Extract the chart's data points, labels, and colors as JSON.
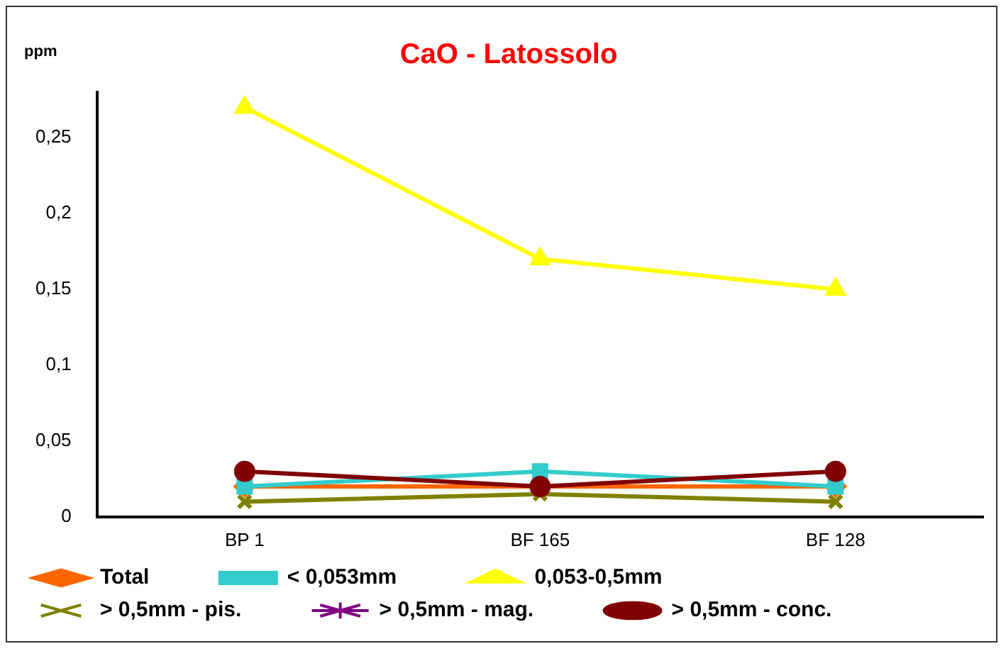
{
  "chart_data": {
    "type": "line",
    "title": "CaO - Latossolo",
    "ylabel": "ppm",
    "categories": [
      "BP 1",
      "BF 165",
      "BF 128"
    ],
    "series": [
      {
        "name": "Total",
        "color": "#ff6600",
        "marker": "diamond",
        "values": [
          0.02,
          0.02,
          0.02
        ]
      },
      {
        "name": "< 0,053mm",
        "color": "#33cccc",
        "marker": "square",
        "values": [
          0.02,
          0.03,
          0.02
        ]
      },
      {
        "name": "0,053-0,5mm",
        "color": "#ffff00",
        "marker": "triangle",
        "values": [
          0.27,
          0.17,
          0.15
        ]
      },
      {
        "name": "> 0,5mm - pis.",
        "color": "#808000",
        "marker": "cross",
        "values": [
          0.01,
          0.015,
          0.01
        ]
      },
      {
        "name": "> 0,5mm - mag.",
        "color": "#800080",
        "marker": "star",
        "values": [
          null,
          null,
          null
        ]
      },
      {
        "name": "> 0,5mm - conc.",
        "color": "#800000",
        "marker": "circle",
        "values": [
          0.03,
          0.02,
          0.03
        ]
      }
    ],
    "ylim": [
      0,
      0.28
    ],
    "yticks": [
      0,
      {
        "value": 0.05,
        "label": "0,05"
      },
      {
        "value": 0.1,
        "label": "0,1"
      },
      {
        "value": 0.15,
        "label": "0,15"
      },
      {
        "value": 0.2,
        "label": "0,2"
      },
      {
        "value": 0.25,
        "label": "0,25"
      }
    ],
    "grid": false,
    "legend": "bottom"
  }
}
